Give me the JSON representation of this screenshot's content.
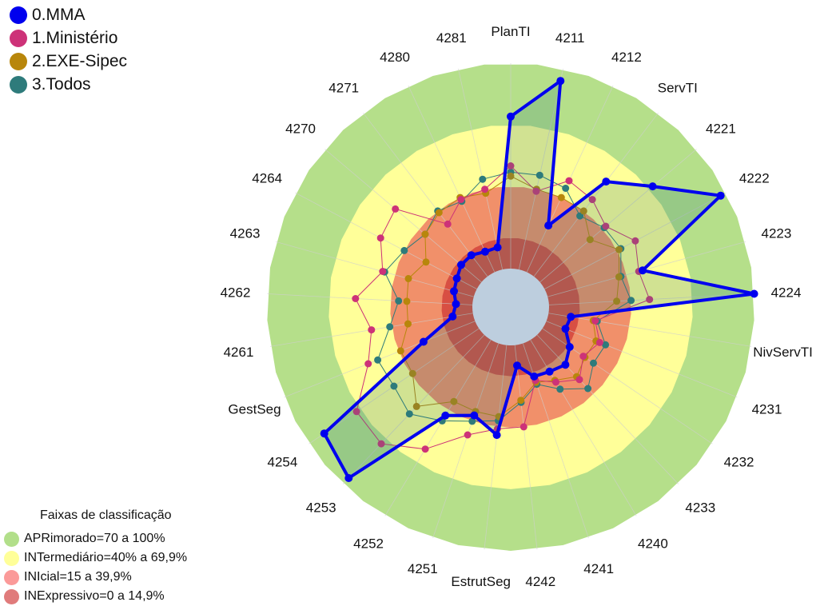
{
  "chart_data": {
    "type": "radar",
    "axes": [
      "PlanTI",
      "4211",
      "4212",
      "ServTI",
      "4221",
      "4222",
      "4223",
      "4224",
      "NivServTI",
      "4231",
      "4232",
      "4233",
      "4240",
      "4241",
      "4242",
      "EstrutSeg",
      "4251",
      "4252",
      "4253",
      "4254",
      "GestSeg",
      "4261",
      "4262",
      "4263",
      "4264",
      "4270",
      "4271",
      "4280",
      "4281"
    ],
    "rlim": [
      0,
      100
    ],
    "bands_title": "Faixas de classificação",
    "bands": [
      {
        "label": "APRimorado=70 a 100%",
        "from": 70,
        "to": 100,
        "color": "#b5df8a",
        "legend_color": "#b2df8a"
      },
      {
        "label": "INTermediário=40% a 69,9%",
        "from": 40,
        "to": 70,
        "color": "#ffff99",
        "legend_color": "#ffff99"
      },
      {
        "label": "INIcial=15 a 39,9%",
        "from": 15,
        "to": 40,
        "color": "#f1906a",
        "legend_color": "#fb9a99"
      },
      {
        "label": "INExpressivo=0 a 14,9%",
        "from": 0,
        "to": 15,
        "color": "#d84f43",
        "legend_color": "#e07b7b"
      }
    ],
    "series": [
      {
        "name": "0.MMA",
        "color": "#0000ee",
        "values": [
          74,
          94,
          25,
          58,
          72,
          97,
          48,
          100,
          11,
          10,
          16,
          20,
          18,
          17,
          10,
          44,
          37,
          43,
          96,
          91,
          27,
          10,
          8,
          10,
          11,
          13,
          13,
          11,
          11
        ]
      },
      {
        "name": "1.Ministério",
        "color": "#cd3278",
        "values": [
          50,
          39,
          49,
          47,
          42,
          50,
          46,
          49,
          23,
          28,
          24,
          30,
          24,
          19,
          40,
          41,
          47,
          62,
          73,
          72,
          56,
          50,
          57,
          46,
          53,
          55,
          32,
          39,
          40
        ]
      },
      {
        "name": "2.EXE-Sipec",
        "color": "#b8860b",
        "values": [
          45,
          40,
          40,
          40,
          32,
          41,
          36,
          33,
          22,
          26,
          25,
          28,
          23,
          20,
          27,
          35,
          35,
          35,
          48,
          39,
          39,
          32,
          32,
          33,
          28,
          36,
          39,
          40,
          38
        ]
      },
      {
        "name": "3.Todos",
        "color": "#2e7b7b",
        "values": [
          47,
          47,
          45,
          37,
          41,
          42,
          37,
          40,
          24,
          31,
          30,
          36,
          28,
          21,
          28,
          37,
          40,
          46,
          53,
          50,
          51,
          41,
          36,
          45,
          40,
          36,
          40,
          38,
          45
        ]
      }
    ]
  }
}
